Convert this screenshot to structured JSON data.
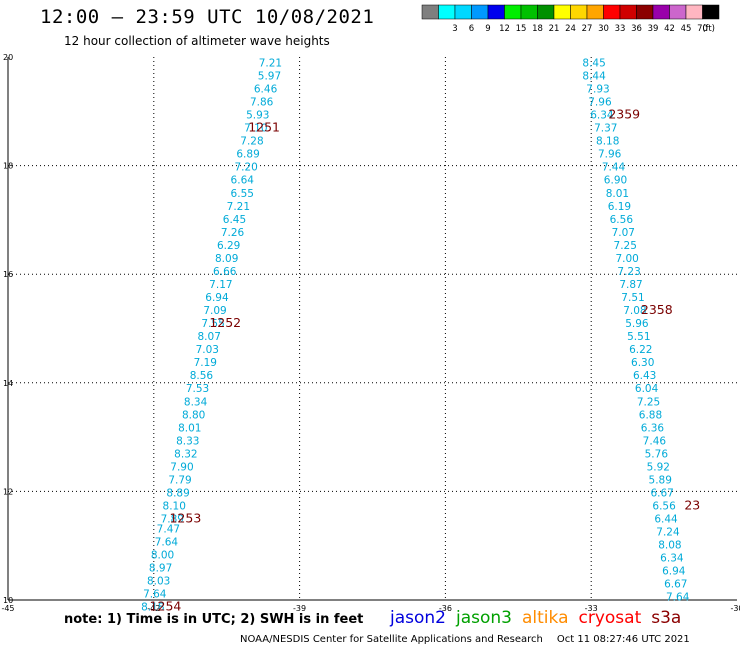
{
  "header": {
    "title": "12:00 – 23:59 UTC 10/08/2021",
    "subtitle": "12 hour collection of altimeter wave heights"
  },
  "legend": {
    "bins": [
      {
        "label": "",
        "color": "#7f7f7f"
      },
      {
        "label": "3",
        "color": "#00ffff"
      },
      {
        "label": "6",
        "color": "#00d8ff"
      },
      {
        "label": "9",
        "color": "#0099ff"
      },
      {
        "label": "12",
        "color": "#0000ee"
      },
      {
        "label": "15",
        "color": "#00ee00"
      },
      {
        "label": "18",
        "color": "#00c000"
      },
      {
        "label": "21",
        "color": "#009000"
      },
      {
        "label": "24",
        "color": "#ffff00"
      },
      {
        "label": "27",
        "color": "#ffd700"
      },
      {
        "label": "30",
        "color": "#ffa500"
      },
      {
        "label": "33",
        "color": "#ff0000"
      },
      {
        "label": "36",
        "color": "#d00000"
      },
      {
        "label": "39",
        "color": "#8b0000"
      },
      {
        "label": "42",
        "color": "#9900aa"
      },
      {
        "label": "45",
        "color": "#cc66cc"
      },
      {
        "label": "70",
        "color": "#ffb6c1"
      },
      {
        "label": "",
        "color": "#000000"
      }
    ],
    "unit": "(ft)"
  },
  "chart_data": {
    "type": "scatter",
    "title": "12:00 – 23:59 UTC 10/08/2021",
    "subtitle": "12 hour collection of altimeter wave heights",
    "xlim": [
      -45,
      -30
    ],
    "ylim": [
      10,
      20
    ],
    "x_ticks": [
      -45,
      -42,
      -39,
      -36,
      -33,
      -30
    ],
    "y_ticks": [
      10,
      12,
      14,
      16,
      18,
      20
    ],
    "grid": true,
    "value_color": "#00aad8",
    "time_color": "#7a0000",
    "unit": "ft",
    "tracks": [
      {
        "name": "west track",
        "points": [
          {
            "x": -39.6,
            "y": 19.9,
            "swh": 7.21
          },
          {
            "x": -39.62,
            "y": 19.66,
            "swh": 5.97
          },
          {
            "x": -39.7,
            "y": 19.42,
            "swh": 6.46
          },
          {
            "x": -39.78,
            "y": 19.18,
            "swh": 7.86
          },
          {
            "x": -39.86,
            "y": 18.94,
            "swh": 5.93
          },
          {
            "x": -39.9,
            "y": 18.7,
            "swh": 7.1
          },
          {
            "x": -39.98,
            "y": 18.46,
            "swh": 7.28
          },
          {
            "x": -40.06,
            "y": 18.22,
            "swh": 6.89
          },
          {
            "x": -40.1,
            "y": 17.98,
            "swh": 7.2
          },
          {
            "x": -40.18,
            "y": 17.74,
            "swh": 6.64
          },
          {
            "x": -40.18,
            "y": 17.5,
            "swh": 6.55
          },
          {
            "x": -40.26,
            "y": 17.26,
            "swh": 7.21
          },
          {
            "x": -40.34,
            "y": 17.02,
            "swh": 6.45
          },
          {
            "x": -40.38,
            "y": 16.78,
            "swh": 7.26
          },
          {
            "x": -40.46,
            "y": 16.54,
            "swh": 6.29
          },
          {
            "x": -40.5,
            "y": 16.3,
            "swh": 8.09
          },
          {
            "x": -40.54,
            "y": 16.06,
            "swh": 6.66
          },
          {
            "x": -40.62,
            "y": 15.82,
            "swh": 7.17
          },
          {
            "x": -40.7,
            "y": 15.58,
            "swh": 6.94
          },
          {
            "x": -40.74,
            "y": 15.34,
            "swh": 7.09
          },
          {
            "x": -40.78,
            "y": 15.1,
            "swh": 7.55
          },
          {
            "x": -40.86,
            "y": 14.86,
            "swh": 8.07
          },
          {
            "x": -40.9,
            "y": 14.62,
            "swh": 7.03
          },
          {
            "x": -40.94,
            "y": 14.38,
            "swh": 7.19
          },
          {
            "x": -41.02,
            "y": 14.14,
            "swh": 8.56
          },
          {
            "x": -41.1,
            "y": 13.9,
            "swh": 7.53
          },
          {
            "x": -41.14,
            "y": 13.66,
            "swh": 8.34
          },
          {
            "x": -41.18,
            "y": 13.42,
            "swh": 8.8
          },
          {
            "x": -41.26,
            "y": 13.18,
            "swh": 8.01
          },
          {
            "x": -41.3,
            "y": 12.94,
            "swh": 8.33
          },
          {
            "x": -41.34,
            "y": 12.7,
            "swh": 8.32
          },
          {
            "x": -41.42,
            "y": 12.46,
            "swh": 7.9
          },
          {
            "x": -41.46,
            "y": 12.22,
            "swh": 7.79
          },
          {
            "x": -41.5,
            "y": 11.98,
            "swh": 8.89
          },
          {
            "x": -41.58,
            "y": 11.74,
            "swh": 8.1
          },
          {
            "x": -41.62,
            "y": 11.5,
            "swh": 7.89
          },
          {
            "x": -41.7,
            "y": 11.32,
            "swh": 7.47
          },
          {
            "x": -41.74,
            "y": 11.08,
            "swh": 7.64
          },
          {
            "x": -41.82,
            "y": 10.84,
            "swh": 8.0
          },
          {
            "x": -41.86,
            "y": 10.6,
            "swh": 8.97
          },
          {
            "x": -41.9,
            "y": 10.36,
            "swh": 8.03
          },
          {
            "x": -41.98,
            "y": 10.12,
            "swh": 7.64
          },
          {
            "x": -42.02,
            "y": 9.88,
            "swh": 8.18
          }
        ],
        "times": [
          {
            "x": -39.73,
            "y": 18.7,
            "label": "1251"
          },
          {
            "x": -40.53,
            "y": 15.1,
            "label": "1252"
          },
          {
            "x": -41.35,
            "y": 11.5,
            "label": "1253"
          },
          {
            "x": -41.76,
            "y": 9.88,
            "label": "1254"
          }
        ]
      },
      {
        "name": "east track",
        "points": [
          {
            "x": -32.94,
            "y": 19.9,
            "swh": 8.45
          },
          {
            "x": -32.94,
            "y": 19.66,
            "swh": 8.44
          },
          {
            "x": -32.86,
            "y": 19.42,
            "swh": 7.93
          },
          {
            "x": -32.82,
            "y": 19.18,
            "swh": 7.96
          },
          {
            "x": -32.78,
            "y": 18.94,
            "swh": 6.34
          },
          {
            "x": -32.7,
            "y": 18.7,
            "swh": 7.37
          },
          {
            "x": -32.66,
            "y": 18.46,
            "swh": 8.18
          },
          {
            "x": -32.62,
            "y": 18.22,
            "swh": 7.96
          },
          {
            "x": -32.54,
            "y": 17.98,
            "swh": 7.44
          },
          {
            "x": -32.5,
            "y": 17.74,
            "swh": 6.9
          },
          {
            "x": -32.46,
            "y": 17.5,
            "swh": 8.01
          },
          {
            "x": -32.42,
            "y": 17.26,
            "swh": 6.19
          },
          {
            "x": -32.38,
            "y": 17.02,
            "swh": 6.56
          },
          {
            "x": -32.34,
            "y": 16.78,
            "swh": 7.07
          },
          {
            "x": -32.3,
            "y": 16.54,
            "swh": 7.25
          },
          {
            "x": -32.26,
            "y": 16.3,
            "swh": 7.0
          },
          {
            "x": -32.22,
            "y": 16.06,
            "swh": 7.23
          },
          {
            "x": -32.18,
            "y": 15.82,
            "swh": 7.87
          },
          {
            "x": -32.14,
            "y": 15.58,
            "swh": 7.51
          },
          {
            "x": -32.1,
            "y": 15.34,
            "swh": 7.08
          },
          {
            "x": -32.06,
            "y": 15.1,
            "swh": 5.96
          },
          {
            "x": -32.02,
            "y": 14.86,
            "swh": 5.51
          },
          {
            "x": -31.98,
            "y": 14.62,
            "swh": 6.22
          },
          {
            "x": -31.94,
            "y": 14.38,
            "swh": 6.3
          },
          {
            "x": -31.9,
            "y": 14.14,
            "swh": 6.43
          },
          {
            "x": -31.86,
            "y": 13.9,
            "swh": 6.04
          },
          {
            "x": -31.82,
            "y": 13.66,
            "swh": 7.25
          },
          {
            "x": -31.78,
            "y": 13.42,
            "swh": 6.88
          },
          {
            "x": -31.74,
            "y": 13.18,
            "swh": 6.36
          },
          {
            "x": -31.7,
            "y": 12.94,
            "swh": 7.46
          },
          {
            "x": -31.66,
            "y": 12.7,
            "swh": 5.76
          },
          {
            "x": -31.62,
            "y": 12.46,
            "swh": 5.92
          },
          {
            "x": -31.58,
            "y": 12.22,
            "swh": 5.89
          },
          {
            "x": -31.54,
            "y": 11.98,
            "swh": 6.67
          },
          {
            "x": -31.5,
            "y": 11.74,
            "swh": 6.56
          },
          {
            "x": -31.46,
            "y": 11.5,
            "swh": 6.44
          },
          {
            "x": -31.42,
            "y": 11.26,
            "swh": 7.24
          },
          {
            "x": -31.38,
            "y": 11.02,
            "swh": 8.08
          },
          {
            "x": -31.34,
            "y": 10.78,
            "swh": 6.34
          },
          {
            "x": -31.3,
            "y": 10.54,
            "swh": 6.94
          },
          {
            "x": -31.26,
            "y": 10.3,
            "swh": 6.67
          },
          {
            "x": -31.22,
            "y": 10.06,
            "swh": 7.64
          }
        ],
        "times": [
          {
            "x": -32.32,
            "y": 18.94,
            "label": "2359"
          },
          {
            "x": -31.65,
            "y": 15.34,
            "label": "2358"
          },
          {
            "x": -30.92,
            "y": 11.74,
            "label": "23"
          }
        ]
      }
    ]
  },
  "footer": {
    "note": "note:  1) Time is in UTC;  2) SWH is in feet",
    "missions": [
      {
        "name": "jason2",
        "color": "#0000dd"
      },
      {
        "name": "jason3",
        "color": "#00a000"
      },
      {
        "name": "altika",
        "color": "#ff8c00"
      },
      {
        "name": "cryosat",
        "color": "#ff0000"
      },
      {
        "name": "s3a",
        "color": "#8b0000"
      }
    ],
    "credit": "NOAA/NESDIS Center for Satellite Applications and Research",
    "timestamp": "Oct 11 08:27:46 UTC 2021"
  }
}
